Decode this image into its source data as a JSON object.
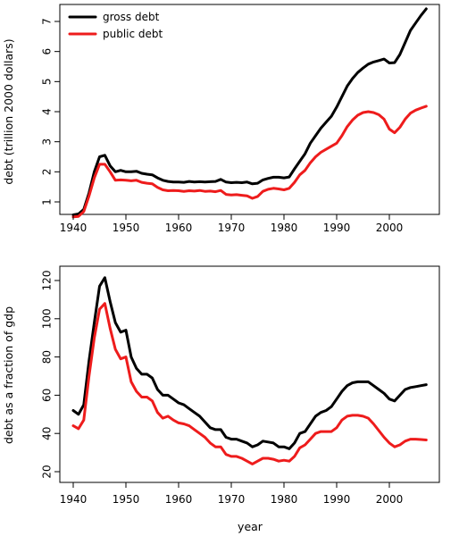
{
  "chart_data": [
    {
      "type": "line",
      "ylabel": "debt (trillion 2000 dollars)",
      "xlabel": "",
      "xlim": [
        1940,
        2007
      ],
      "ylim": [
        0.5,
        7.4
      ],
      "xticks": [
        1940,
        1950,
        1960,
        1970,
        1980,
        1990,
        2000
      ],
      "yticks": [
        1,
        2,
        3,
        4,
        5,
        6,
        7
      ],
      "legend": "top-left",
      "grid": false,
      "series": [
        {
          "name": "gross debt",
          "color": "#000000",
          "x": [
            1940,
            1941,
            1942,
            1943,
            1944,
            1945,
            1946,
            1947,
            1948,
            1949,
            1950,
            1951,
            1952,
            1953,
            1954,
            1955,
            1956,
            1957,
            1958,
            1959,
            1960,
            1961,
            1962,
            1963,
            1964,
            1965,
            1966,
            1967,
            1968,
            1969,
            1970,
            1971,
            1972,
            1973,
            1974,
            1975,
            1976,
            1977,
            1978,
            1979,
            1980,
            1981,
            1982,
            1983,
            1984,
            1985,
            1986,
            1987,
            1988,
            1989,
            1990,
            1991,
            1992,
            1993,
            1994,
            1995,
            1996,
            1997,
            1998,
            1999,
            2000,
            2001,
            2002,
            2003,
            2004,
            2005,
            2006,
            2007
          ],
          "values": [
            0.57,
            0.6,
            0.75,
            1.3,
            2.0,
            2.5,
            2.55,
            2.2,
            2.0,
            2.05,
            2.0,
            2.0,
            2.02,
            1.95,
            1.92,
            1.9,
            1.8,
            1.72,
            1.68,
            1.66,
            1.66,
            1.65,
            1.68,
            1.66,
            1.67,
            1.66,
            1.67,
            1.68,
            1.75,
            1.66,
            1.64,
            1.65,
            1.64,
            1.66,
            1.6,
            1.62,
            1.73,
            1.78,
            1.82,
            1.82,
            1.8,
            1.83,
            2.1,
            2.35,
            2.6,
            2.95,
            3.2,
            3.45,
            3.65,
            3.85,
            4.15,
            4.5,
            4.85,
            5.1,
            5.3,
            5.45,
            5.58,
            5.65,
            5.7,
            5.75,
            5.62,
            5.63,
            5.9,
            6.3,
            6.7,
            6.95,
            7.2,
            7.42
          ]
        },
        {
          "name": "public debt",
          "color": "#ee1c1c",
          "x": [
            1940,
            1941,
            1942,
            1943,
            1944,
            1945,
            1946,
            1947,
            1948,
            1949,
            1950,
            1951,
            1952,
            1953,
            1954,
            1955,
            1956,
            1957,
            1958,
            1959,
            1960,
            1961,
            1962,
            1963,
            1964,
            1965,
            1966,
            1967,
            1968,
            1969,
            1970,
            1971,
            1972,
            1973,
            1974,
            1975,
            1976,
            1977,
            1978,
            1979,
            1980,
            1981,
            1982,
            1983,
            1984,
            1985,
            1986,
            1987,
            1988,
            1989,
            1990,
            1991,
            1992,
            1993,
            1994,
            1995,
            1996,
            1997,
            1998,
            1999,
            2000,
            2001,
            2002,
            2003,
            2004,
            2005,
            2006,
            2007
          ],
          "values": [
            0.5,
            0.52,
            0.68,
            1.2,
            1.8,
            2.25,
            2.25,
            2.0,
            1.72,
            1.73,
            1.72,
            1.7,
            1.72,
            1.65,
            1.62,
            1.6,
            1.48,
            1.4,
            1.37,
            1.38,
            1.37,
            1.35,
            1.37,
            1.36,
            1.38,
            1.35,
            1.36,
            1.34,
            1.38,
            1.25,
            1.23,
            1.24,
            1.22,
            1.2,
            1.12,
            1.18,
            1.35,
            1.42,
            1.45,
            1.43,
            1.4,
            1.45,
            1.65,
            1.9,
            2.05,
            2.3,
            2.5,
            2.65,
            2.75,
            2.85,
            2.95,
            3.2,
            3.5,
            3.72,
            3.88,
            3.97,
            4.0,
            3.97,
            3.9,
            3.75,
            3.42,
            3.3,
            3.48,
            3.75,
            3.95,
            4.05,
            4.12,
            4.18
          ]
        }
      ]
    },
    {
      "type": "line",
      "ylabel": "debt as a fraction of gdp",
      "xlabel": "year",
      "xlim": [
        1940,
        2007
      ],
      "ylim": [
        20,
        122
      ],
      "xticks": [
        1940,
        1950,
        1960,
        1970,
        1980,
        1990,
        2000
      ],
      "yticks": [
        20,
        40,
        60,
        80,
        100,
        120
      ],
      "grid": false,
      "series": [
        {
          "color": "#000000",
          "x": [
            1940,
            1941,
            1942,
            1943,
            1944,
            1945,
            1946,
            1947,
            1948,
            1949,
            1950,
            1951,
            1952,
            1953,
            1954,
            1955,
            1956,
            1957,
            1958,
            1959,
            1960,
            1961,
            1962,
            1963,
            1964,
            1965,
            1966,
            1967,
            1968,
            1969,
            1970,
            1971,
            1972,
            1973,
            1974,
            1975,
            1976,
            1977,
            1978,
            1979,
            1980,
            1981,
            1982,
            1983,
            1984,
            1985,
            1986,
            1987,
            1988,
            1989,
            1990,
            1991,
            1992,
            1993,
            1994,
            1995,
            1996,
            1997,
            1998,
            1999,
            2000,
            2001,
            2002,
            2003,
            2004,
            2005,
            2006,
            2007
          ],
          "values": [
            52,
            50,
            55,
            78,
            98,
            117,
            121.5,
            109,
            98,
            93,
            94,
            80,
            74,
            71,
            71,
            69,
            63,
            60,
            60,
            58,
            56,
            55,
            53,
            51,
            49,
            46,
            43,
            42,
            42,
            38,
            37,
            37,
            36,
            35,
            33,
            34,
            36,
            35.5,
            35,
            33,
            33,
            32,
            35,
            40,
            41,
            45,
            49,
            51,
            52,
            54,
            58,
            62,
            65,
            66.5,
            67,
            67,
            67,
            65,
            63,
            61,
            58,
            57,
            60,
            63,
            64,
            64.5,
            65,
            65.5
          ]
        },
        {
          "color": "#ee1c1c",
          "x": [
            1940,
            1941,
            1942,
            1943,
            1944,
            1945,
            1946,
            1947,
            1948,
            1949,
            1950,
            1951,
            1952,
            1953,
            1954,
            1955,
            1956,
            1957,
            1958,
            1959,
            1960,
            1961,
            1962,
            1963,
            1964,
            1965,
            1966,
            1967,
            1968,
            1969,
            1970,
            1971,
            1972,
            1973,
            1974,
            1975,
            1976,
            1977,
            1978,
            1979,
            1980,
            1981,
            1982,
            1983,
            1984,
            1985,
            1986,
            1987,
            1988,
            1989,
            1990,
            1991,
            1992,
            1993,
            1994,
            1995,
            1996,
            1997,
            1998,
            1999,
            2000,
            2001,
            2002,
            2003,
            2004,
            2005,
            2006,
            2007
          ],
          "values": [
            44,
            42.5,
            47,
            70,
            90,
            105,
            108,
            95,
            84,
            79,
            80,
            67,
            62,
            59,
            59,
            57,
            51,
            48,
            49,
            47,
            45.5,
            45,
            44,
            42,
            40,
            38,
            35,
            33,
            33,
            29,
            28,
            28,
            27,
            25.5,
            24,
            25.5,
            27,
            27,
            26.5,
            25.5,
            26,
            25.5,
            28,
            32.5,
            34,
            37,
            40,
            41,
            41,
            41,
            43,
            47,
            49,
            49.5,
            49.5,
            49,
            48,
            45,
            41.5,
            38,
            35,
            33,
            34,
            36,
            37,
            37,
            36.8,
            36.6
          ]
        }
      ]
    }
  ]
}
